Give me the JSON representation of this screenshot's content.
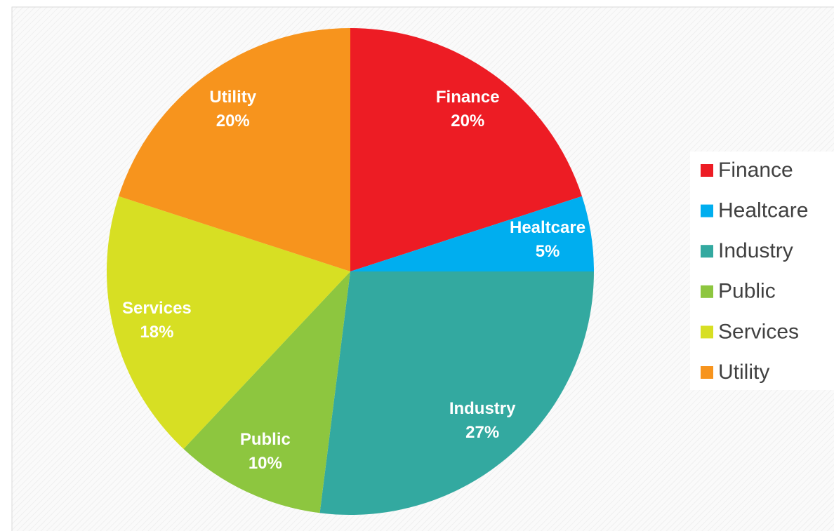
{
  "chart_data": {
    "type": "pie",
    "categories": [
      "Finance",
      "Healtcare",
      "Industry",
      "Public",
      "Services",
      "Utility"
    ],
    "values": [
      20,
      5,
      27,
      10,
      18,
      20
    ],
    "value_labels": [
      "20%",
      "5%",
      "27%",
      "10%",
      "18%",
      "20%"
    ],
    "colors": [
      "#ed1c24",
      "#00aeef",
      "#33a9a0",
      "#8dc63f",
      "#d7df23",
      "#f7941d"
    ],
    "legend": "right"
  }
}
